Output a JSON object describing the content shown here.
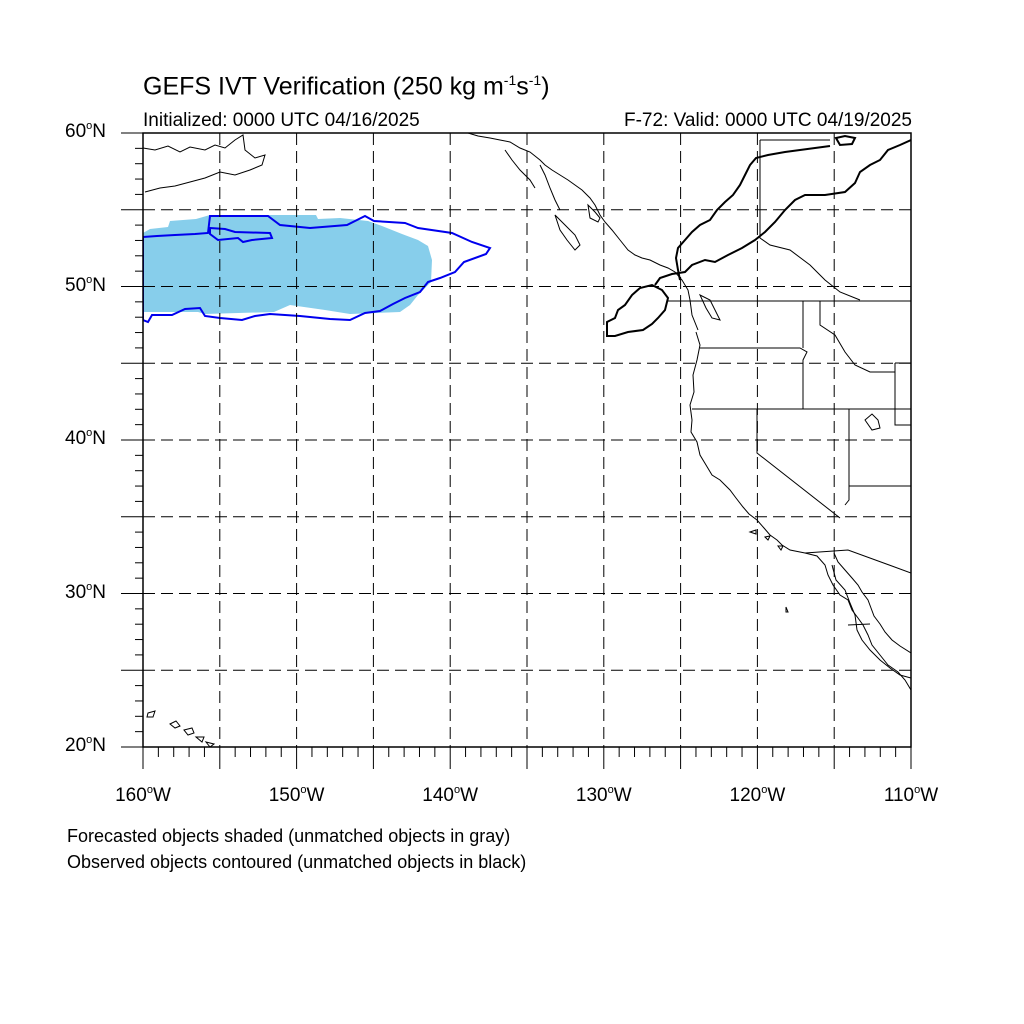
{
  "header": {
    "title_main": "GEFS IVT Verification (250 kg m",
    "title_exp1": "-1",
    "title_mid": "s",
    "title_exp2": "-1",
    "title_end": ")",
    "initialized": "Initialized: 0000 UTC 04/16/2025",
    "valid": "F-72: Valid: 0000 UTC 04/19/2025"
  },
  "axes": {
    "lat_labels": [
      {
        "num": "60",
        "hemi": "N"
      },
      {
        "num": "50",
        "hemi": "N"
      },
      {
        "num": "40",
        "hemi": "N"
      },
      {
        "num": "30",
        "hemi": "N"
      },
      {
        "num": "20",
        "hemi": "N"
      }
    ],
    "lon_labels": [
      {
        "num": "160",
        "hemi": "W"
      },
      {
        "num": "150",
        "hemi": "W"
      },
      {
        "num": "140",
        "hemi": "W"
      },
      {
        "num": "130",
        "hemi": "W"
      },
      {
        "num": "120",
        "hemi": "W"
      },
      {
        "num": "110",
        "hemi": "W"
      }
    ],
    "lon_range": [
      -160,
      -110
    ],
    "lat_range": [
      20,
      60
    ],
    "grid_step_deg": 5,
    "grid_style": "dashed"
  },
  "legend": {
    "forecast_note": "Forecasted objects shaded (unmatched objects in gray)",
    "observed_note": "Observed objects contoured (unmatched objects in black)"
  },
  "colors": {
    "forecast_fill": "#87ceeb",
    "observed_matched_contour": "#0000ee",
    "observed_unmatched_contour": "#000000",
    "coastline": "#000000",
    "grid": "#000000"
  }
}
